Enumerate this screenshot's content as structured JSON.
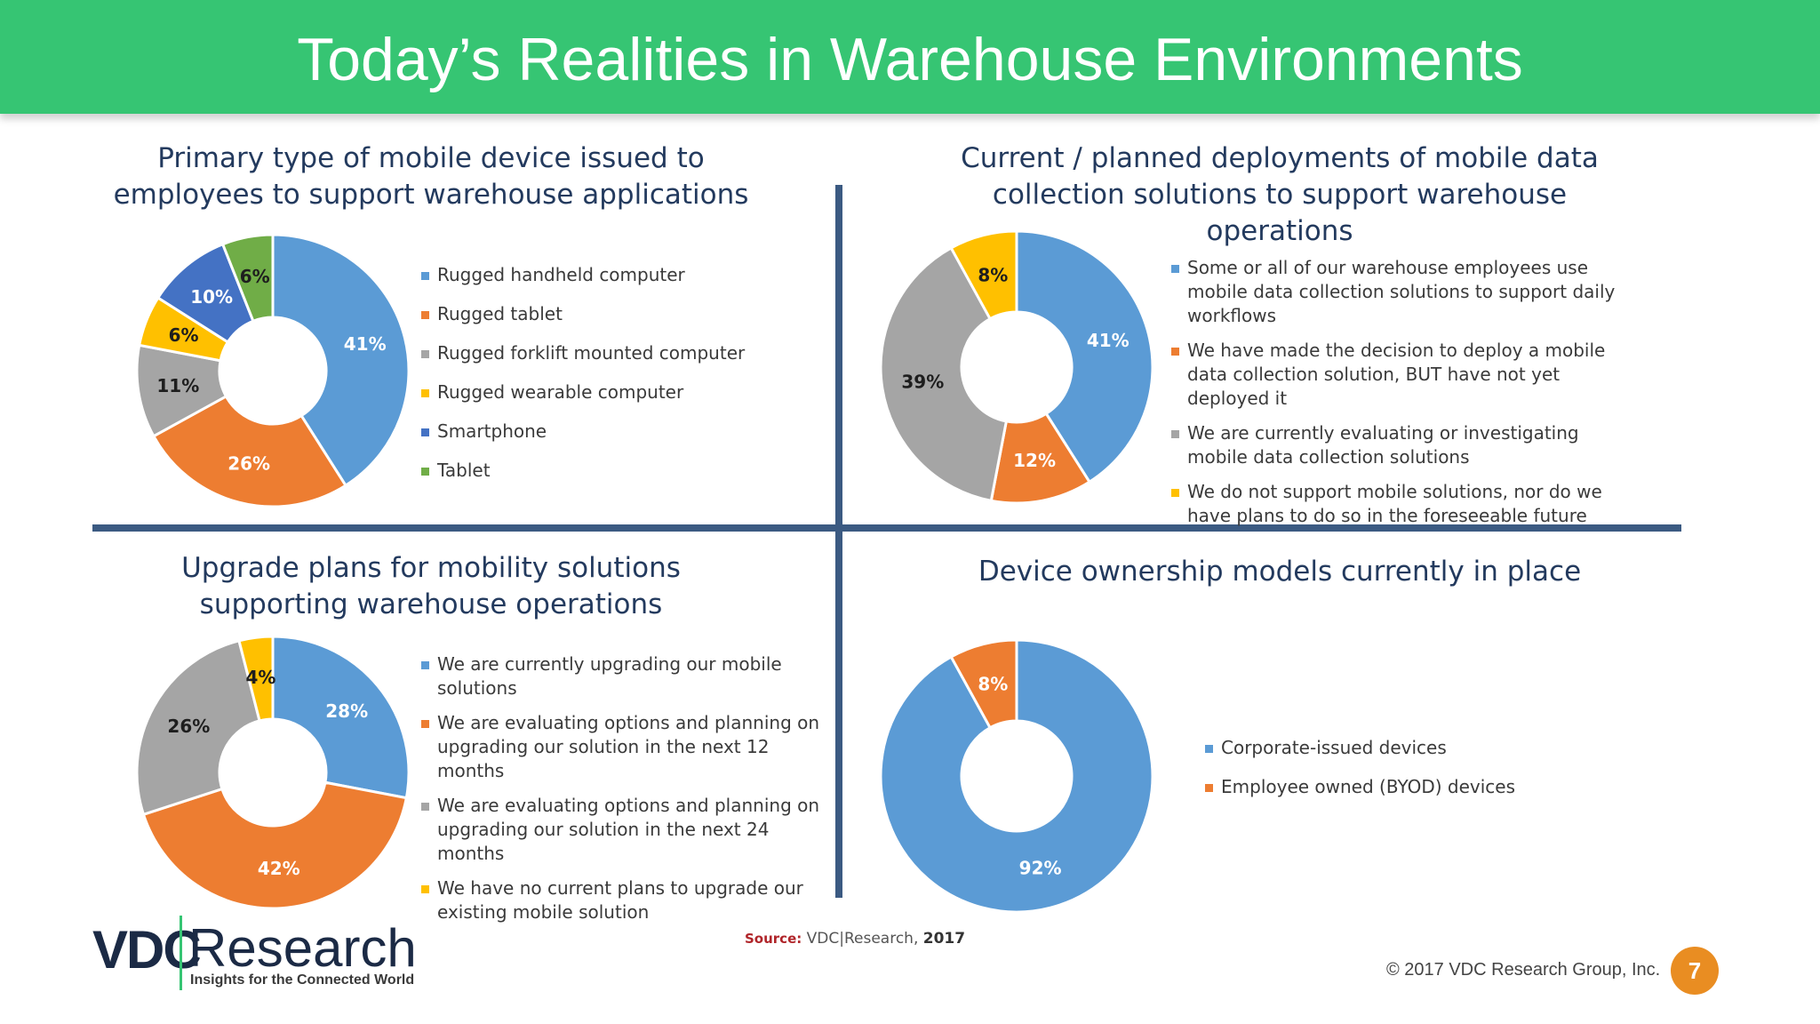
{
  "header": {
    "title": "Today’s Realities in Warehouse Environments"
  },
  "colors": {
    "header_bg": "#36c573",
    "divider": "#3b5a82",
    "title_text": "#233a5e",
    "badge": "#e98d22"
  },
  "chart_data": [
    {
      "type": "pie",
      "title": "Primary type of mobile device issued to employees to support warehouse applications",
      "categories": [
        "Rugged handheld computer",
        "Rugged tablet",
        "Rugged forklift mounted computer",
        "Rugged wearable computer",
        "Smartphone",
        "Tablet"
      ],
      "values": [
        41,
        26,
        11,
        6,
        10,
        6
      ],
      "labels": [
        "41%",
        "26%",
        "11%",
        "6%",
        "10%",
        "6%"
      ],
      "colors": [
        "#5b9bd5",
        "#ed7d31",
        "#a5a5a5",
        "#ffc000",
        "#4472c4",
        "#70ad47"
      ],
      "legend": "right"
    },
    {
      "type": "pie",
      "title": "Current / planned deployments of mobile data collection solutions to support warehouse operations",
      "categories": [
        "Some or all of our warehouse employees use mobile data collection solutions to support daily workflows",
        "We have made the decision to deploy a mobile data collection solution, BUT have not yet deployed it",
        "We are currently evaluating or investigating mobile data collection solutions",
        "We do not support mobile solutions, nor do we have plans to do so in the foreseeable future"
      ],
      "values": [
        41,
        12,
        39,
        8
      ],
      "labels": [
        "41%",
        "12%",
        "39%",
        "8%"
      ],
      "colors": [
        "#5b9bd5",
        "#ed7d31",
        "#a5a5a5",
        "#ffc000"
      ],
      "legend": "right"
    },
    {
      "type": "pie",
      "title": "Upgrade plans for mobility solutions supporting warehouse operations",
      "categories": [
        "We are currently upgrading our mobile solutions",
        "We are evaluating options and planning on upgrading our solution in the next 12 months",
        "We are evaluating options and planning on upgrading our solution in the next 24 months",
        "We have no current plans to upgrade our existing mobile solution"
      ],
      "values": [
        28,
        42,
        26,
        4
      ],
      "labels": [
        "28%",
        "42%",
        "26%",
        "4%"
      ],
      "colors": [
        "#5b9bd5",
        "#ed7d31",
        "#a5a5a5",
        "#ffc000"
      ],
      "legend": "right"
    },
    {
      "type": "pie",
      "title": "Device ownership models currently in place",
      "categories": [
        "Corporate-issued devices",
        "Employee owned (BYOD) devices"
      ],
      "values": [
        92,
        8
      ],
      "labels": [
        "92%",
        "8%"
      ],
      "colors": [
        "#5b9bd5",
        "#ed7d31"
      ],
      "legend": "right"
    }
  ],
  "footer": {
    "logo_vdc": "VDC",
    "logo_research": "Research",
    "logo_tagline": "Insights for the Connected World",
    "source_label": "Source:",
    "source_org": "VDC|Research,",
    "source_year": "2017",
    "copyright": "© 2017 VDC Research Group, Inc.",
    "page_number": "7"
  }
}
